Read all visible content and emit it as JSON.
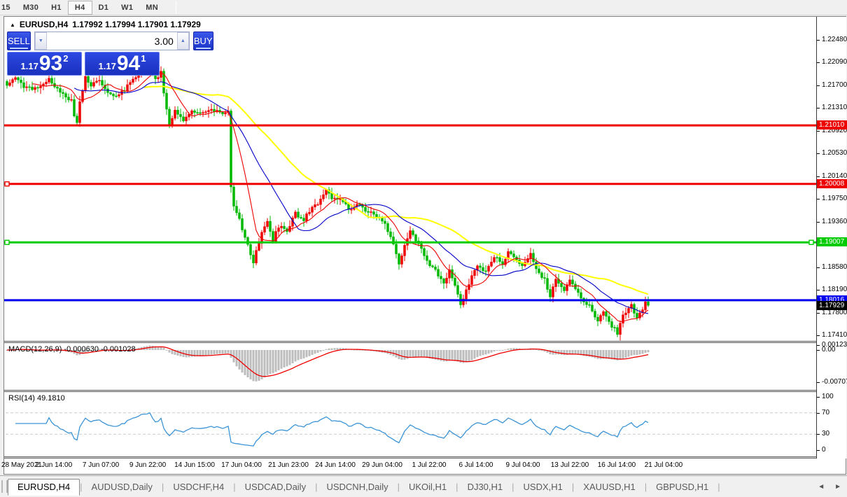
{
  "toolbar": {
    "timeframes": [
      "15",
      "M30",
      "H1",
      "H4",
      "D1",
      "W1",
      "MN"
    ],
    "active": "H4"
  },
  "header": {
    "collapse_icon": "▲",
    "title": "EURUSD,H4",
    "ohlc_text": "1.17992 1.17994 1.17901 1.17929"
  },
  "trade_panel": {
    "sell_label": "SELL",
    "buy_label": "BUY",
    "volume": "3.00",
    "spinner_down_icon": "▼",
    "spinner_up_icon": "▲",
    "sell_price": {
      "prefix": "1.17",
      "big": "93",
      "sup": "2"
    },
    "buy_price": {
      "prefix": "1.17",
      "big": "94",
      "sup": "1"
    }
  },
  "chart_data": {
    "type": "candlestick",
    "symbol": "EURUSD",
    "timeframe": "H4",
    "last_ohlc": {
      "open": 1.17992,
      "high": 1.17994,
      "low": 1.17901,
      "close": 1.17929
    },
    "bars": 230,
    "candle_colors": {
      "up": "#ee0000",
      "down": "#00b800"
    },
    "price_keyframes": [
      [
        0,
        1.2172
      ],
      [
        3,
        1.2181
      ],
      [
        6,
        1.2168
      ],
      [
        9,
        1.2162
      ],
      [
        12,
        1.2171
      ],
      [
        15,
        1.218
      ],
      [
        18,
        1.2163
      ],
      [
        21,
        1.2152
      ],
      [
        23,
        1.2143
      ],
      [
        24,
        1.2116
      ],
      [
        25,
        1.2107
      ],
      [
        26,
        1.2142
      ],
      [
        28,
        1.2184
      ],
      [
        30,
        1.217
      ],
      [
        33,
        1.2178
      ],
      [
        36,
        1.2158
      ],
      [
        39,
        1.215
      ],
      [
        42,
        1.2163
      ],
      [
        45,
        1.218
      ],
      [
        48,
        1.2193
      ],
      [
        51,
        1.22
      ],
      [
        53,
        1.2178
      ],
      [
        55,
        1.2193
      ],
      [
        56,
        1.2158
      ],
      [
        58,
        1.2103
      ],
      [
        60,
        1.2126
      ],
      [
        63,
        1.211
      ],
      [
        66,
        1.2128
      ],
      [
        69,
        1.212
      ],
      [
        73,
        1.2128
      ],
      [
        76,
        1.2122
      ],
      [
        79,
        1.2126
      ],
      [
        80,
        1.1998
      ],
      [
        81,
        1.196
      ],
      [
        83,
        1.194
      ],
      [
        85,
        1.191
      ],
      [
        87,
        1.1878
      ],
      [
        88,
        1.1866
      ],
      [
        89,
        1.1888
      ],
      [
        91,
        1.1916
      ],
      [
        93,
        1.1938
      ],
      [
        95,
        1.1905
      ],
      [
        97,
        1.1928
      ],
      [
        100,
        1.192
      ],
      [
        103,
        1.195
      ],
      [
        106,
        1.194
      ],
      [
        109,
        1.196
      ],
      [
        112,
        1.1972
      ],
      [
        114,
        1.199
      ],
      [
        116,
        1.1974
      ],
      [
        119,
        1.1978
      ],
      [
        122,
        1.1956
      ],
      [
        125,
        1.1968
      ],
      [
        128,
        1.1956
      ],
      [
        131,
        1.195
      ],
      [
        134,
        1.194
      ],
      [
        136,
        1.192
      ],
      [
        138,
        1.1898
      ],
      [
        140,
        1.1862
      ],
      [
        142,
        1.1896
      ],
      [
        144,
        1.192
      ],
      [
        146,
        1.1906
      ],
      [
        148,
        1.189
      ],
      [
        150,
        1.1868
      ],
      [
        153,
        1.1852
      ],
      [
        156,
        1.183
      ],
      [
        158,
        1.1854
      ],
      [
        160,
        1.1826
      ],
      [
        162,
        1.1794
      ],
      [
        164,
        1.1818
      ],
      [
        166,
        1.1844
      ],
      [
        168,
        1.1862
      ],
      [
        171,
        1.185
      ],
      [
        174,
        1.1876
      ],
      [
        177,
        1.1864
      ],
      [
        179,
        1.1882
      ],
      [
        182,
        1.187
      ],
      [
        184,
        1.1858
      ],
      [
        187,
        1.1882
      ],
      [
        189,
        1.1858
      ],
      [
        192,
        1.1836
      ],
      [
        194,
        1.1808
      ],
      [
        196,
        1.1838
      ],
      [
        199,
        1.182
      ],
      [
        201,
        1.1834
      ],
      [
        204,
        1.1812
      ],
      [
        206,
        1.18
      ],
      [
        208,
        1.1792
      ],
      [
        211,
        1.1764
      ],
      [
        213,
        1.1784
      ],
      [
        216,
        1.1758
      ],
      [
        218,
        1.1746
      ],
      [
        220,
        1.1776
      ],
      [
        223,
        1.1794
      ],
      [
        225,
        1.177
      ],
      [
        227,
        1.1786
      ],
      [
        228,
        1.1799
      ],
      [
        229,
        1.17929
      ]
    ],
    "moving_averages": [
      {
        "name": "fast",
        "period": 10,
        "color": "#ee0000",
        "width": 1.1
      },
      {
        "name": "medium",
        "period": 25,
        "color": "#0000c8",
        "width": 1.1
      },
      {
        "name": "slow",
        "period": 50,
        "color": "#ffff00",
        "width": 2
      }
    ],
    "horizontal_lines": [
      {
        "label": "1.21010",
        "value": 1.2101,
        "color": "#ee0000",
        "squares": []
      },
      {
        "label": "1.20008",
        "value": 1.20008,
        "color": "#ee0000",
        "squares": [
          "left"
        ]
      },
      {
        "label": "1.19007",
        "value": 1.19007,
        "color": "#00cc00",
        "squares": [
          "left",
          "right"
        ]
      },
      {
        "label": "1.18016",
        "value": 1.18016,
        "color": "#0000ee",
        "squares": []
      }
    ],
    "bid_label": {
      "text": "1.17929",
      "value": 1.17929,
      "bg": "#000000"
    },
    "y_axis_ticks": [
      "1.22480",
      "1.22090",
      "1.21700",
      "1.21310",
      "1.20920",
      "1.20530",
      "1.20140",
      "1.19750",
      "1.19360",
      "1.18970",
      "1.18580",
      "1.18190",
      "1.17800",
      "1.17410"
    ],
    "x_axis_labels": [
      "28 May 2021",
      "2 Jun 14:00",
      "7 Jun 07:00",
      "9 Jun 22:00",
      "14 Jun 15:00",
      "17 Jun 04:00",
      "21 Jun 23:00",
      "24 Jun 14:00",
      "29 Jun 04:00",
      "1 Jul 22:00",
      "6 Jul 14:00",
      "9 Jul 04:00",
      "13 Jul 22:00",
      "16 Jul 14:00",
      "21 Jul 04:00"
    ],
    "macd": {
      "label": "MACD(12,26,9) -0.000630 -0.001028",
      "fast": 12,
      "slow": 26,
      "signal": 9,
      "value": -0.00063,
      "signal_value": -0.001028,
      "axis_labels": [
        "0.001232",
        "0.00",
        "-0.00707"
      ],
      "histogram_color": "#bcbcbc",
      "line_color": "#ee0000"
    },
    "rsi": {
      "label": "RSI(14) 49.1810",
      "period": 14,
      "value": 49.181,
      "axis_labels": [
        "100",
        "70",
        "30",
        "0"
      ],
      "levels": [
        70,
        30
      ],
      "color": "#3b94d6",
      "level_color": "#c9c9c9"
    }
  },
  "tabs": {
    "items": [
      "EURUSD,H4",
      "AUDUSD,Daily",
      "USDCHF,H4",
      "USDCAD,Daily",
      "USDCNH,Daily",
      "UKOil,H1",
      "DJ30,H1",
      "USDX,H1",
      "XAUUSD,H1",
      "GBPUSD,H1"
    ],
    "active_index": 0,
    "scroll_left_icon": "◄",
    "scroll_right_icon": "►"
  }
}
